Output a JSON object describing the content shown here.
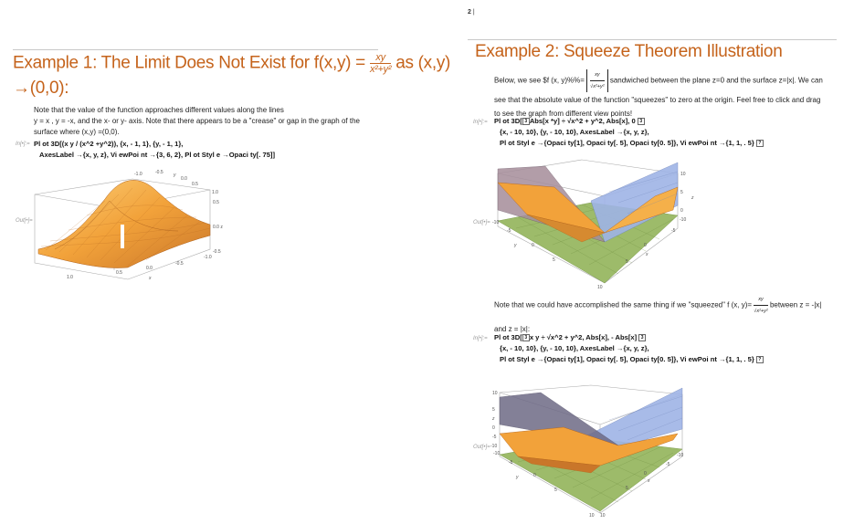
{
  "header": {
    "page_number": "2",
    "separator": "|"
  },
  "example1": {
    "title_text": "Example 1: The Limit Does Not Exist for f(x,y) =",
    "frac_num": "xy",
    "frac_den": "x²+y²",
    "title_suffix": "as (x,y)",
    "title_line2": "→(0,0):",
    "para_line1": "Note that the value of the function approaches different values along the lines",
    "para_line2": "y = x , y = -x,  and the x- or y- axis.  Note that there appears to be a \"crease\" or gap in the graph of the",
    "para_line3": "surface where (x,y) =(0,0).",
    "in_label": "In[•]:=",
    "out_label": "Out[•]=",
    "code_line1": "Pl ot 3D[(x y / (x^2 +y^2)),  {x,  - 1,  1},  {y,  - 1,  1},",
    "code_line2": "AxesLabel  →{x,  y,  z},  Vi ewPoi nt  →{3,  6,  2},  Pl ot Styl e →Opaci ty[. 75]]",
    "ticks": {
      "y_top": [
        "-1.0",
        "-0.5",
        "y",
        "0.0",
        "0.5",
        "1.0"
      ],
      "z_right": [
        "0.5",
        "0.0 z",
        "-0.5",
        "-1.0"
      ],
      "x_bottom": [
        "1.0",
        "0.5",
        "0.0",
        "-0.5",
        "x"
      ]
    }
  },
  "example2": {
    "title": "Example 2: Squeeze Theorem Illustration",
    "para1_start": "Below, we see $f (x, y)%%=",
    "para1_frac_num": "xy",
    "para1_frac_den": "√x²+y²",
    "para1_end": "sandwiched between the plane z=0 and the surface z=|x|.  We can",
    "para1_line2": "see that the absolute value of the function \"squeezes\" to zero at the origin.  Feel free to click and drag",
    "para1_line3": "to see the graph from different view points!",
    "in_label": "In[•]:=",
    "out_label": "Out[•]=",
    "code1_line1_a": "Pl ot 3D[",
    "code1_line1_b": "Abs[x *y] ÷ √x^2 + y^2,  Abs[x],  0",
    "code1_line2": "{x,  - 10,  10},  {y,  - 10,  10},  AxesLabel  →{x,  y,  z},",
    "code1_line3": "Pl ot Styl e →{Opaci ty[1],  Opaci ty[. 5],  Opaci ty[0. 5]},  Vi ewPoi nt  →{1,  1,  . 5}",
    "para2_start": "Note that we could have accomplished the same thing if we \"squeezed\" f (x, y)=",
    "para2_frac_num": "xy",
    "para2_frac_den": "√x²+y²",
    "para2_end": "between z = -|x|",
    "para2_line2": "and z = |x|:",
    "code2_line1_a": "Pl ot 3D[",
    "code2_line1_b": "x y ÷ √x^2 + y^2,  Abs[x],  - Abs[x]",
    "code2_line2": "{x,  - 10,  10},  {y,  - 10,  10},  AxesLabel  →{x,  y,  z},",
    "code2_line3": "Pl ot Styl e →{Opaci ty[1],  Opaci ty[. 5],  Opaci ty[0. 5]},  Vi ewPoi nt  →{1,  1,  . 5}",
    "plot1_ticks": {
      "z": [
        "10",
        "5",
        "z",
        "0"
      ],
      "left": [
        "-10",
        "-5"
      ],
      "y": [
        "y",
        "0",
        "5"
      ],
      "bottom": [
        "10",
        "-10"
      ],
      "right": [
        "-10",
        "-5",
        "0",
        "x",
        "5"
      ]
    },
    "plot2_ticks": {
      "z": [
        "10",
        "5",
        "z",
        "0",
        "-5",
        "-10"
      ],
      "left": [
        "-10",
        "-5"
      ],
      "y": [
        "y",
        "0",
        "5"
      ],
      "bottom": [
        "10",
        "10"
      ],
      "right": [
        "-10",
        "-5",
        "0",
        "x",
        "5"
      ]
    }
  },
  "colors": {
    "title": "#c5631b",
    "surface_orange": "#f2a23a",
    "plane_green": "#9dbb6a",
    "surface_blue": "#9fb4e6"
  }
}
